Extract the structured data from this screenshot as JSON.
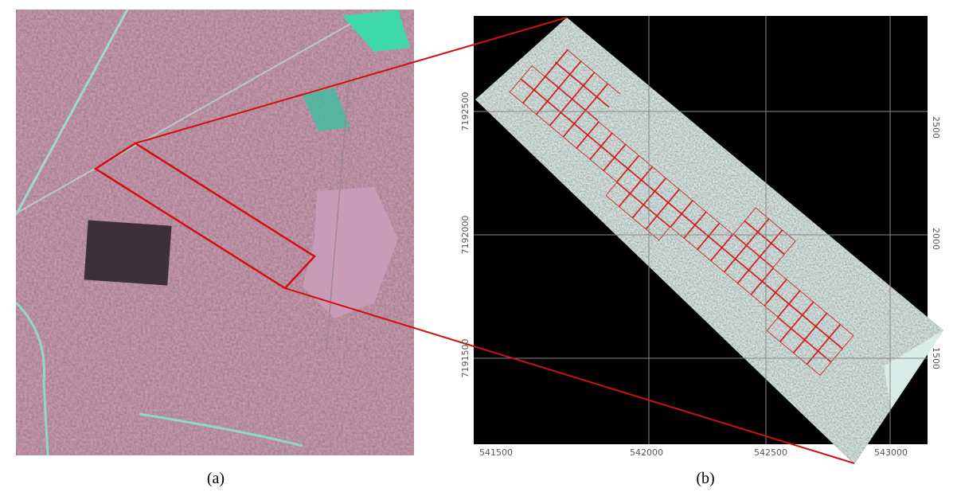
{
  "panels": [
    {
      "label": "(a)"
    },
    {
      "label": "(b)",
      "x_ticks": [
        "541500",
        "542000",
        "542500",
        "543000"
      ],
      "y_ticks": [
        "7192500",
        "7192000",
        "7191500"
      ],
      "y_ticks_right": [
        "2500",
        "2000",
        "1500"
      ]
    }
  ]
}
